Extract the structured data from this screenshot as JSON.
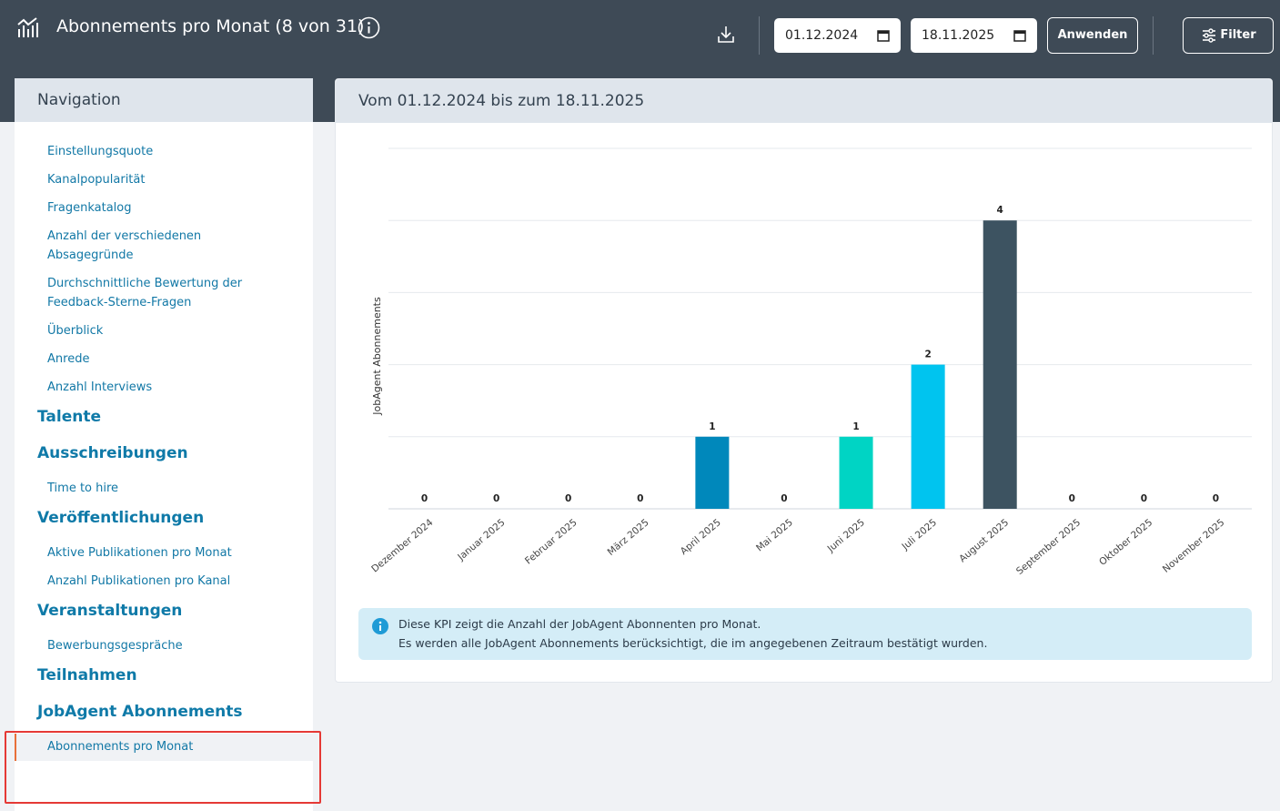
{
  "header": {
    "title": "Abonnements pro Monat (8 von 31)",
    "date_from": "01.12.2024",
    "date_to": "18.11.2025",
    "apply_button": "Anwenden",
    "filter_button": "Filter"
  },
  "navigation": {
    "title": "Navigation",
    "groups": [
      {
        "items": [
          "Einstellungsquote",
          "Kanalpopularität",
          "Fragenkatalog",
          "Anzahl der verschiedenen Absagegründe",
          "Durchschnittliche Bewertung der Feedback-Sterne-Fragen",
          "Überblick",
          "Anrede",
          "Anzahl Interviews"
        ]
      },
      {
        "heading": "Talente",
        "items": []
      },
      {
        "heading": "Ausschreibungen",
        "items": [
          "Time to hire"
        ]
      },
      {
        "heading": "Veröffentlichungen",
        "items": [
          "Aktive Publikationen pro Monat",
          "Anzahl Publikationen pro Kanal"
        ]
      },
      {
        "heading": "Veranstaltungen",
        "items": [
          "Bewerbungsgespräche"
        ]
      },
      {
        "heading": "Teilnahmen",
        "items": []
      },
      {
        "heading": "JobAgent Abonnements",
        "items": [
          "Abonnements pro Monat"
        ],
        "active_item": 0
      }
    ]
  },
  "panel": {
    "title": "Vom 01.12.2024 bis zum 18.11.2025",
    "info": [
      "Diese KPI zeigt die Anzahl der JobAgent Abonnenten pro Monat.",
      "Es werden alle JobAgent Abonnements berücksichtigt, die im angegebenen Zeitraum bestätigt wurden."
    ]
  },
  "chart_data": {
    "type": "bar",
    "y_label": "JobAgent Abonnements",
    "categories": [
      "Dezember 2024",
      "Januar 2025",
      "Februar 2025",
      "März 2025",
      "April 2025",
      "Mai 2025",
      "Juni 2025",
      "Juli 2025",
      "August 2025",
      "September 2025",
      "Oktober 2025",
      "November 2025"
    ],
    "values": [
      0,
      0,
      0,
      0,
      1,
      0,
      1,
      2,
      4,
      0,
      0,
      0
    ],
    "colors": [
      "#3d5361",
      "#0088bb",
      "#00d4c4",
      "#00c4ef",
      "#0088bb",
      "#3d5361",
      "#00d4c4",
      "#00c4ef",
      "#3d5361",
      "#0088bb",
      "#00d4c4",
      "#00c4ef"
    ],
    "ylim": [
      0,
      5
    ],
    "gridlines": [
      0,
      1,
      2,
      3,
      4,
      5
    ]
  }
}
